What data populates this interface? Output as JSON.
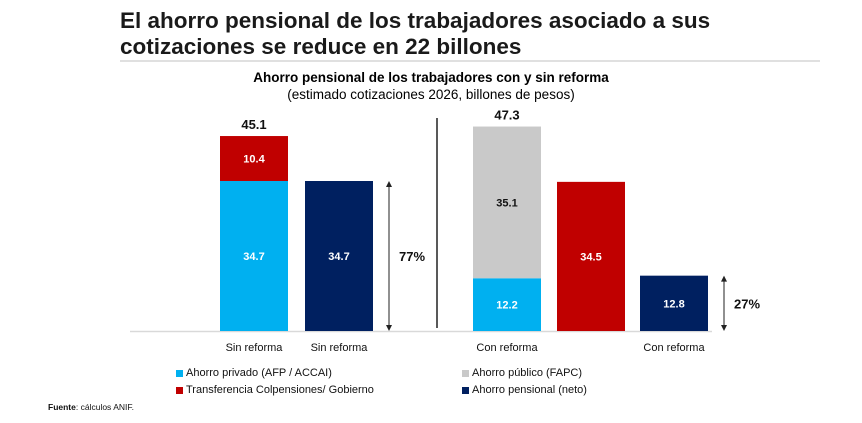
{
  "header": {
    "title_line1": "El ahorro pensional de los trabajadores asociado a sus",
    "title_line2": "cotizaciones se reduce en 22 billones"
  },
  "chart_data": {
    "type": "bar",
    "stacked": true,
    "title": "Ahorro pensional de los trabajadores con y sin reforma",
    "subtitle": "(estimado cotizaciones 2026, billones de pesos)",
    "categories": [
      "Sin reforma",
      "Sin reforma",
      "Con reforma",
      "",
      "Con reforma"
    ],
    "bars": [
      {
        "total": "45.1",
        "segments": [
          {
            "series": "Ahorro privado (AFP / ACCAI)",
            "value": 34.7,
            "label": "34.7"
          },
          {
            "series": "Transferencia Colpensiones/ Gobierno",
            "value": 10.4,
            "label": "10.4"
          }
        ]
      },
      {
        "total": null,
        "segments": [
          {
            "series": "Ahorro pensional (neto)",
            "value": 34.7,
            "label": "34.7"
          }
        ]
      },
      {
        "total": "47.3",
        "segments": [
          {
            "series": "Ahorro privado (AFP / ACCAI)",
            "value": 12.2,
            "label": "12.2"
          },
          {
            "series": "Ahorro público (FAPC)",
            "value": 35.1,
            "label": "35.1"
          }
        ]
      },
      {
        "total": null,
        "segments": [
          {
            "series": "Transferencia Colpensiones/ Gobierno",
            "value": 34.5,
            "label": "34.5"
          }
        ]
      },
      {
        "total": null,
        "segments": [
          {
            "series": "Ahorro pensional (neto)",
            "value": 12.8,
            "label": "12.8"
          }
        ]
      }
    ],
    "annotations": [
      {
        "text": "77%",
        "bar": 1
      },
      {
        "text": "27%",
        "bar": 4
      }
    ],
    "legend": {
      "position": "bottom",
      "entries": [
        {
          "name": "Ahorro privado (AFP / ACCAI)",
          "color": "#00B0F0"
        },
        {
          "name": "Ahorro público (FAPC)",
          "color": "#C9C9C9"
        },
        {
          "name": "Transferencia Colpensiones/ Gobierno",
          "color": "#C00000"
        },
        {
          "name": "Ahorro pensional (neto)",
          "color": "#002060"
        }
      ]
    },
    "ylim": [
      0,
      50
    ],
    "grid": false
  },
  "source": {
    "label": "Fuente",
    "text": ": cálculos ANIF."
  }
}
